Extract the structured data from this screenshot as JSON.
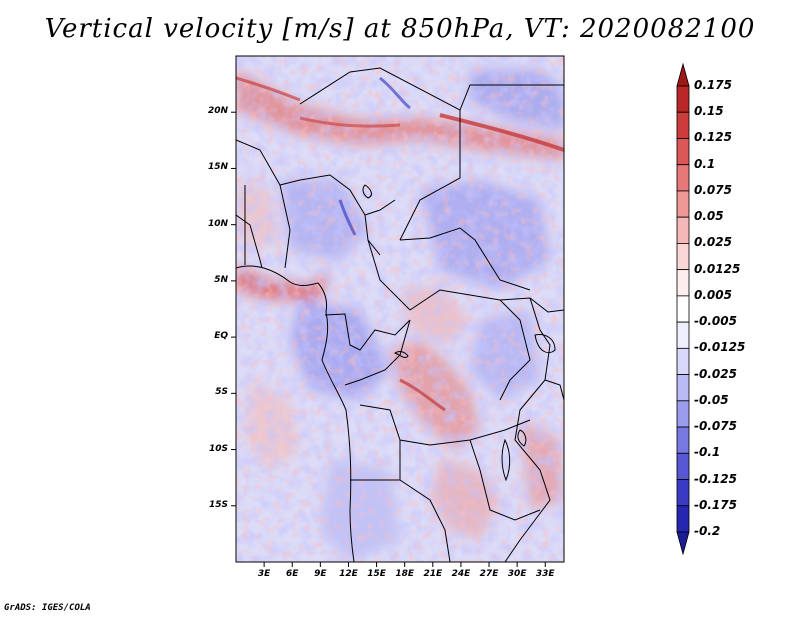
{
  "title": "Vertical velocity [m/s] at 850hPa, VT: 2020082100",
  "credit": "GrADS: IGES/COLA",
  "map": {
    "variable": "Vertical velocity",
    "units": "m/s",
    "level": "850hPa",
    "valid_time": "2020082100",
    "lat_range": [
      -20,
      25
    ],
    "lon_range": [
      0,
      35
    ],
    "lat_ticks": [
      {
        "value": 20,
        "label": "20N"
      },
      {
        "value": 15,
        "label": "15N"
      },
      {
        "value": 10,
        "label": "10N"
      },
      {
        "value": 5,
        "label": "5N"
      },
      {
        "value": 0,
        "label": "EQ"
      },
      {
        "value": -5,
        "label": "5S"
      },
      {
        "value": -10,
        "label": "10S"
      },
      {
        "value": -15,
        "label": "15S"
      }
    ],
    "lon_ticks": [
      {
        "value": 3,
        "label": "3E"
      },
      {
        "value": 6,
        "label": "6E"
      },
      {
        "value": 9,
        "label": "9E"
      },
      {
        "value": 12,
        "label": "12E"
      },
      {
        "value": 15,
        "label": "15E"
      },
      {
        "value": 18,
        "label": "18E"
      },
      {
        "value": 21,
        "label": "21E"
      },
      {
        "value": 24,
        "label": "24E"
      },
      {
        "value": 27,
        "label": "27E"
      },
      {
        "value": 30,
        "label": "30E"
      },
      {
        "value": 33,
        "label": "33E"
      }
    ]
  },
  "colorbar": {
    "levels": [
      "0.175",
      "0.15",
      "0.125",
      "0.1",
      "0.075",
      "0.05",
      "0.025",
      "0.0125",
      "0.005",
      "-0.005",
      "-0.0125",
      "-0.025",
      "-0.05",
      "-0.075",
      "-0.1",
      "-0.125",
      "-0.175",
      "-0.2"
    ],
    "colors": [
      "#a01818",
      "#b82828",
      "#cc3c3c",
      "#dc5858",
      "#e67878",
      "#ee9898",
      "#f5b8b8",
      "#fad6d6",
      "#fdeeee",
      "#ffffff",
      "#eeeeff",
      "#d8d8fb",
      "#babaf5",
      "#9c9cef",
      "#7878e2",
      "#5858d4",
      "#3a3ac4",
      "#2626b0",
      "#1c1c98"
    ],
    "top_arrow_color": "#a01818",
    "bottom_arrow_color": "#1c1c98"
  }
}
